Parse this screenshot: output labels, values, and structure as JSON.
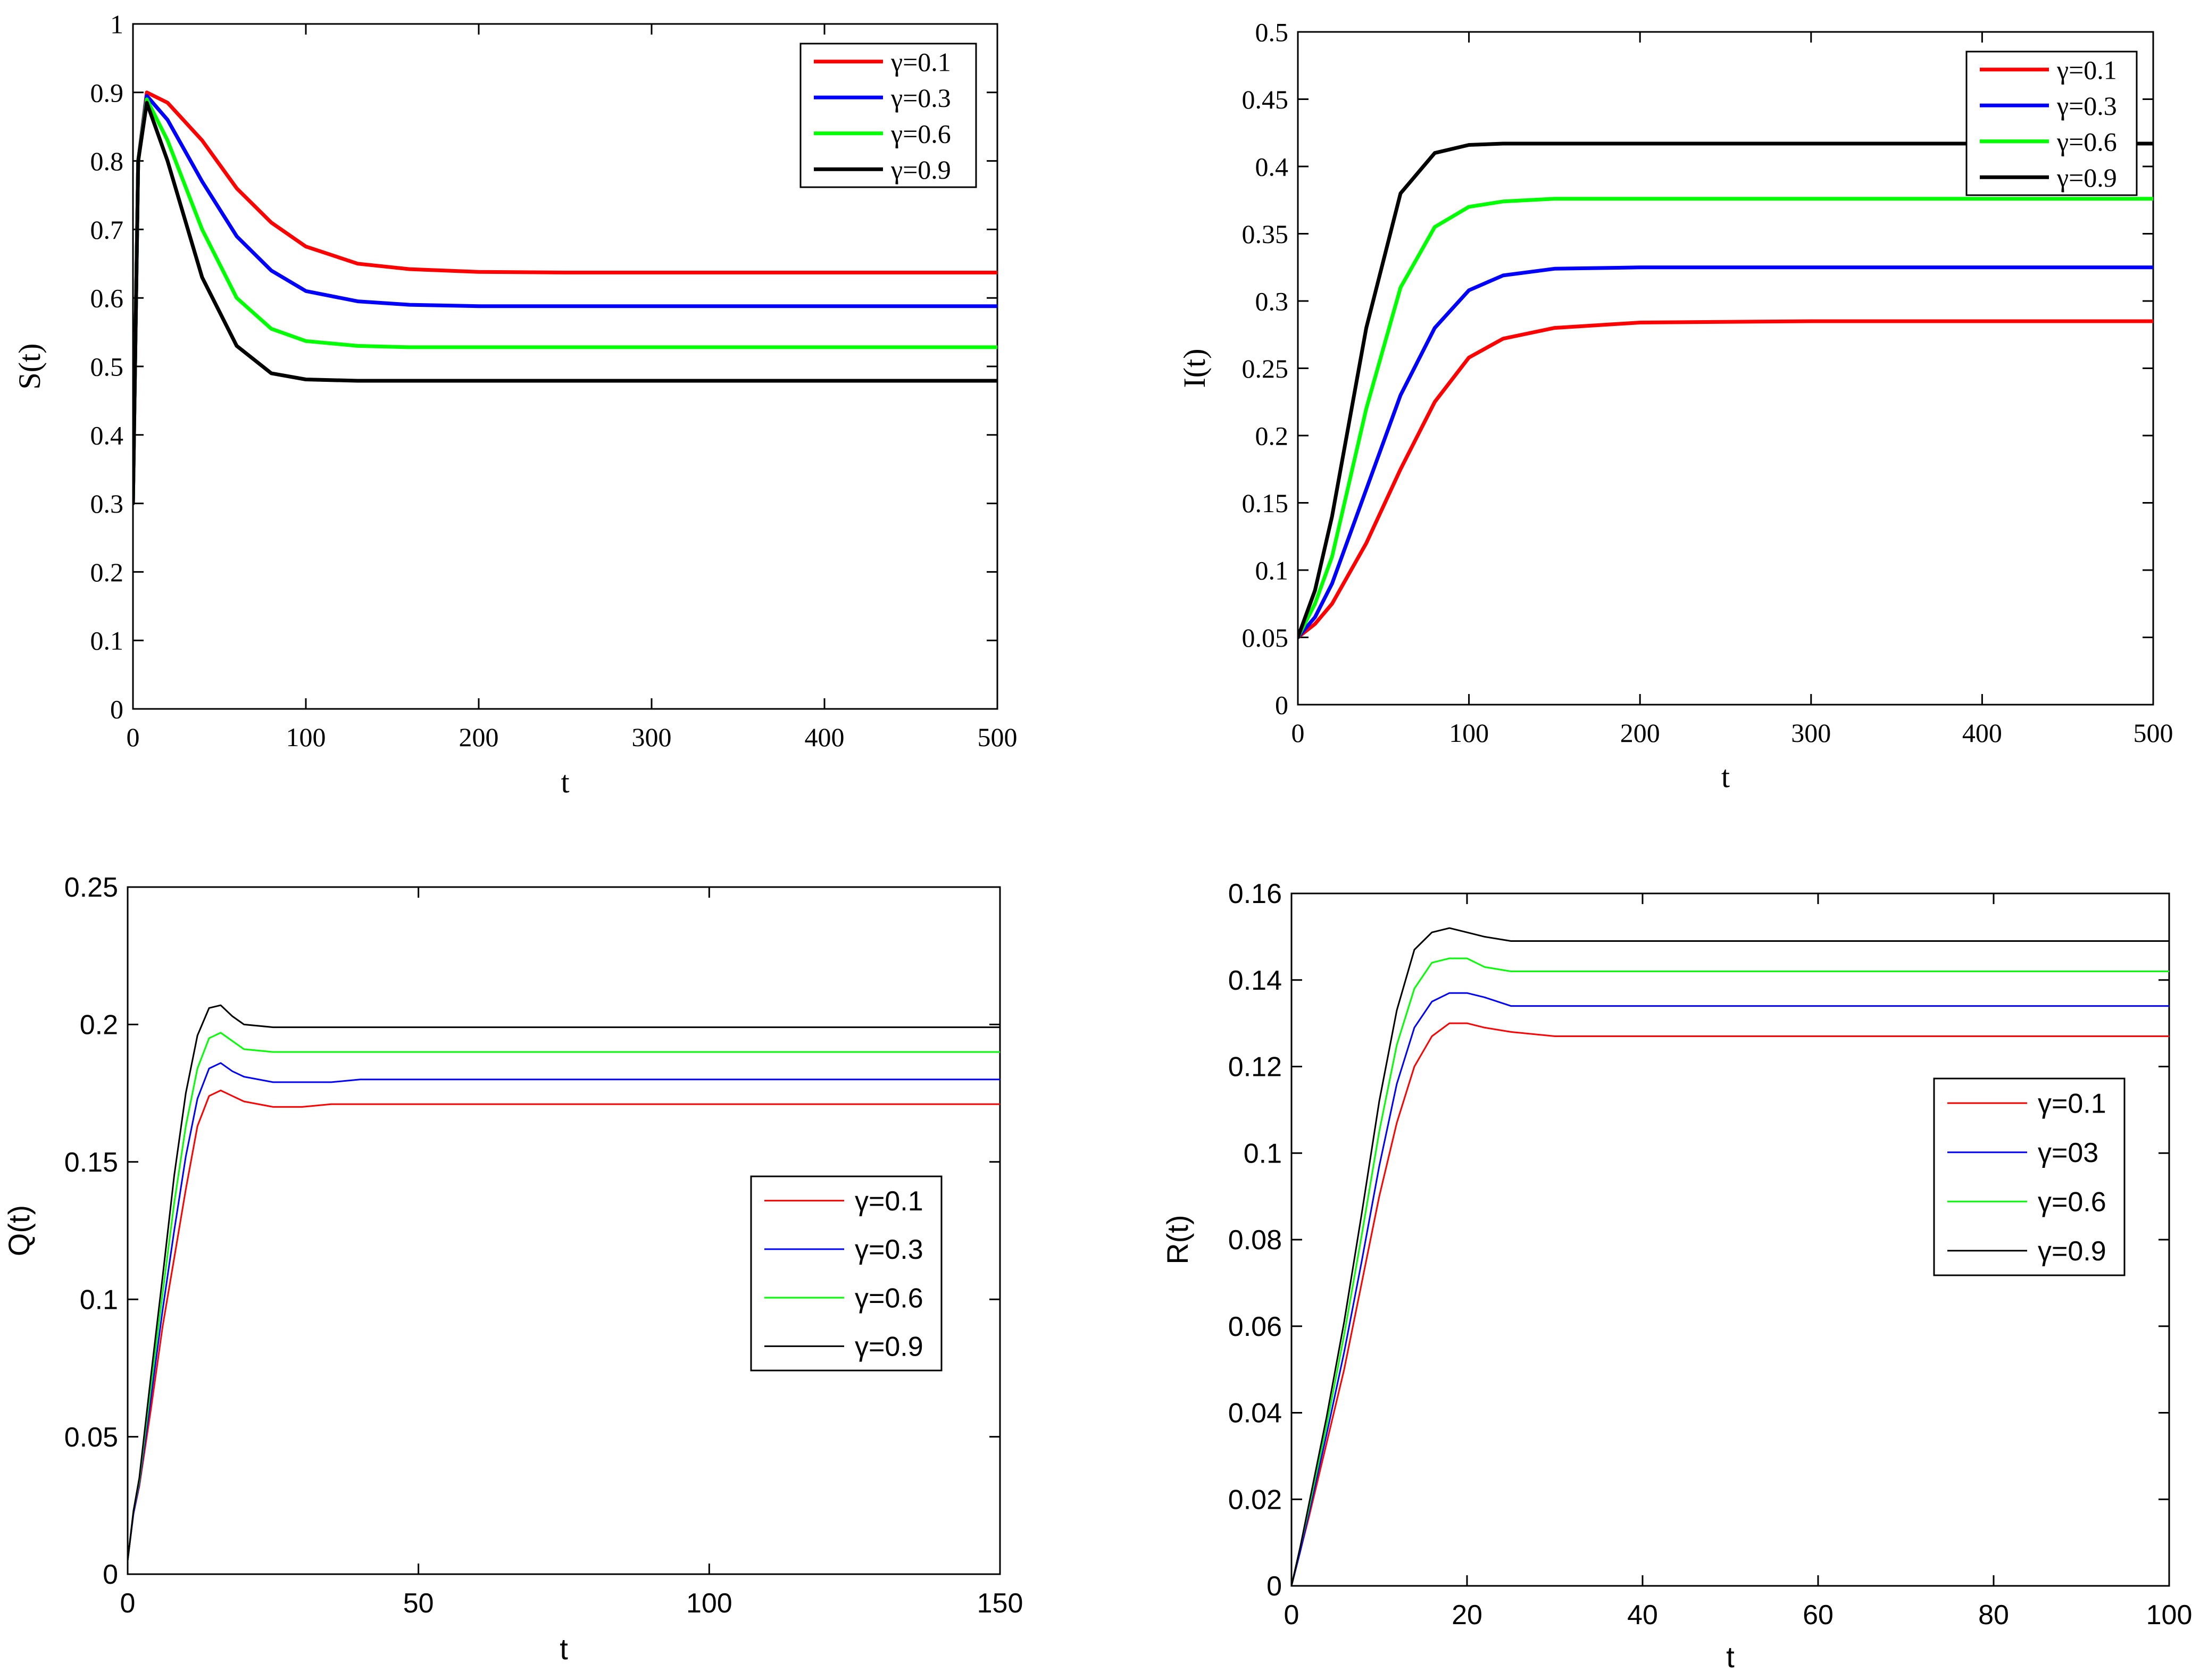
{
  "chart_data": [
    {
      "id": "S",
      "type": "line",
      "font": "serif",
      "ylabel": "S(t)",
      "xlabel": "t",
      "xlim": [
        0,
        500
      ],
      "ylim": [
        0,
        1
      ],
      "xticks": [
        0,
        100,
        200,
        300,
        400,
        500
      ],
      "xtick_labels": [
        "0",
        "100",
        "200",
        "300",
        "400",
        "500"
      ],
      "yticks": [
        0,
        0.1,
        0.2,
        0.3,
        0.4,
        0.5,
        0.6,
        0.7,
        0.8,
        0.9,
        1
      ],
      "ytick_labels": [
        "0",
        "0.1",
        "0.2",
        "0.3",
        "0.4",
        "0.5",
        "0.6",
        "0.7",
        "0.8",
        "0.9",
        "1"
      ],
      "legend_position": "top-right",
      "series": [
        {
          "name": "γ=0.1",
          "color": "#ff0000",
          "x": [
            0,
            3,
            8,
            20,
            40,
            60,
            80,
            100,
            130,
            160,
            200,
            250,
            300,
            400,
            500
          ],
          "y": [
            0.3,
            0.8,
            0.9,
            0.885,
            0.83,
            0.76,
            0.71,
            0.675,
            0.65,
            0.642,
            0.638,
            0.637,
            0.637,
            0.637,
            0.637
          ]
        },
        {
          "name": "γ=0.3",
          "color": "#0000ff",
          "x": [
            0,
            3,
            8,
            20,
            40,
            60,
            80,
            100,
            130,
            160,
            200,
            250,
            300,
            400,
            500
          ],
          "y": [
            0.3,
            0.8,
            0.895,
            0.86,
            0.77,
            0.69,
            0.64,
            0.61,
            0.595,
            0.59,
            0.588,
            0.588,
            0.588,
            0.588,
            0.588
          ]
        },
        {
          "name": "γ=0.6",
          "color": "#00ff00",
          "x": [
            0,
            3,
            8,
            20,
            40,
            60,
            80,
            100,
            130,
            160,
            200,
            250,
            300,
            400,
            500
          ],
          "y": [
            0.3,
            0.8,
            0.89,
            0.83,
            0.7,
            0.6,
            0.555,
            0.537,
            0.53,
            0.528,
            0.528,
            0.528,
            0.528,
            0.528,
            0.528
          ]
        },
        {
          "name": "γ=0.9",
          "color": "#000000",
          "x": [
            0,
            3,
            8,
            20,
            40,
            60,
            80,
            100,
            130,
            160,
            200,
            250,
            300,
            400,
            500
          ],
          "y": [
            0.3,
            0.8,
            0.885,
            0.8,
            0.63,
            0.53,
            0.49,
            0.481,
            0.479,
            0.479,
            0.479,
            0.479,
            0.479,
            0.479,
            0.479
          ]
        }
      ]
    },
    {
      "id": "I",
      "type": "line",
      "font": "serif",
      "ylabel": "I(t)",
      "xlabel": "t",
      "xlim": [
        0,
        500
      ],
      "ylim": [
        0,
        0.5
      ],
      "xticks": [
        0,
        100,
        200,
        300,
        400,
        500
      ],
      "xtick_labels": [
        "0",
        "100",
        "200",
        "300",
        "400",
        "500"
      ],
      "yticks": [
        0,
        0.05,
        0.1,
        0.15,
        0.2,
        0.25,
        0.3,
        0.35,
        0.4,
        0.45,
        0.5
      ],
      "ytick_labels": [
        "0",
        "0.05",
        "0.1",
        "0.15",
        "0.2",
        "0.25",
        "0.3",
        "0.35",
        "0.4",
        "0.45",
        "0.5"
      ],
      "legend_position": "top-right",
      "series": [
        {
          "name": "γ=0.1",
          "color": "#ff0000",
          "x": [
            0,
            10,
            20,
            40,
            60,
            80,
            100,
            120,
            150,
            200,
            300,
            400,
            500
          ],
          "y": [
            0.05,
            0.06,
            0.075,
            0.12,
            0.175,
            0.225,
            0.258,
            0.272,
            0.28,
            0.284,
            0.285,
            0.285,
            0.285
          ]
        },
        {
          "name": "γ=0.3",
          "color": "#0000ff",
          "x": [
            0,
            10,
            20,
            40,
            60,
            80,
            100,
            120,
            150,
            200,
            300,
            400,
            500
          ],
          "y": [
            0.05,
            0.065,
            0.09,
            0.16,
            0.23,
            0.28,
            0.308,
            0.319,
            0.324,
            0.325,
            0.325,
            0.325,
            0.325
          ]
        },
        {
          "name": "γ=0.6",
          "color": "#00ff00",
          "x": [
            0,
            10,
            20,
            40,
            60,
            80,
            100,
            120,
            150,
            200,
            300,
            400,
            500
          ],
          "y": [
            0.05,
            0.075,
            0.11,
            0.22,
            0.31,
            0.355,
            0.37,
            0.374,
            0.376,
            0.376,
            0.376,
            0.376,
            0.376
          ]
        },
        {
          "name": "γ=0.9",
          "color": "#000000",
          "x": [
            0,
            10,
            20,
            40,
            60,
            80,
            100,
            120,
            150,
            200,
            300,
            400,
            500
          ],
          "y": [
            0.05,
            0.085,
            0.14,
            0.28,
            0.38,
            0.41,
            0.416,
            0.417,
            0.417,
            0.417,
            0.417,
            0.417,
            0.417
          ]
        }
      ]
    },
    {
      "id": "Q",
      "type": "line",
      "font": "sans",
      "ylabel": "Q(t)",
      "xlabel": "t",
      "xlim": [
        0,
        150
      ],
      "ylim": [
        0,
        0.25
      ],
      "xticks": [
        0,
        50,
        100,
        150
      ],
      "xtick_labels": [
        "0",
        "50",
        "100",
        "150"
      ],
      "yticks": [
        0,
        0.05,
        0.1,
        0.15,
        0.2,
        0.25
      ],
      "ytick_labels": [
        "0",
        "0.05",
        "0.1",
        "0.15",
        "0.2",
        "0.25"
      ],
      "legend_position": "center-right",
      "series": [
        {
          "name": "γ=0.1",
          "color": "#ff0000",
          "x": [
            0,
            1,
            2,
            4,
            6,
            8,
            10,
            12,
            14,
            16,
            18,
            20,
            25,
            30,
            35,
            40,
            60,
            80,
            100,
            150
          ],
          "y": [
            0.005,
            0.022,
            0.032,
            0.06,
            0.09,
            0.115,
            0.14,
            0.163,
            0.174,
            0.176,
            0.174,
            0.172,
            0.17,
            0.17,
            0.171,
            0.171,
            0.171,
            0.171,
            0.171,
            0.171
          ]
        },
        {
          "name": "γ=0.3",
          "color": "#0000ff",
          "x": [
            0,
            1,
            2,
            4,
            6,
            8,
            10,
            12,
            14,
            16,
            18,
            20,
            25,
            30,
            35,
            40,
            60,
            80,
            100,
            150
          ],
          "y": [
            0.005,
            0.022,
            0.033,
            0.064,
            0.096,
            0.125,
            0.152,
            0.173,
            0.184,
            0.186,
            0.183,
            0.181,
            0.179,
            0.179,
            0.179,
            0.18,
            0.18,
            0.18,
            0.18,
            0.18
          ]
        },
        {
          "name": "γ=0.6",
          "color": "#00ff00",
          "x": [
            0,
            1,
            2,
            4,
            6,
            8,
            10,
            12,
            14,
            16,
            18,
            20,
            25,
            30,
            35,
            40,
            60,
            80,
            100,
            150
          ],
          "y": [
            0.005,
            0.023,
            0.034,
            0.068,
            0.102,
            0.135,
            0.163,
            0.184,
            0.195,
            0.197,
            0.194,
            0.191,
            0.19,
            0.19,
            0.19,
            0.19,
            0.19,
            0.19,
            0.19,
            0.19
          ]
        },
        {
          "name": "γ=0.9",
          "color": "#000000",
          "x": [
            0,
            1,
            2,
            4,
            6,
            8,
            10,
            12,
            14,
            16,
            18,
            20,
            25,
            30,
            35,
            40,
            60,
            80,
            100,
            150
          ],
          "y": [
            0.005,
            0.023,
            0.035,
            0.072,
            0.108,
            0.145,
            0.175,
            0.196,
            0.206,
            0.207,
            0.203,
            0.2,
            0.199,
            0.199,
            0.199,
            0.199,
            0.199,
            0.199,
            0.199,
            0.199
          ]
        }
      ]
    },
    {
      "id": "R",
      "type": "line",
      "font": "sans",
      "ylabel": "R(t)",
      "xlabel": "t",
      "xlim": [
        0,
        100
      ],
      "ylim": [
        0,
        0.16
      ],
      "xticks": [
        0,
        20,
        40,
        60,
        80,
        100
      ],
      "xtick_labels": [
        "0",
        "20",
        "40",
        "60",
        "80",
        "100"
      ],
      "yticks": [
        0,
        0.02,
        0.04,
        0.06,
        0.08,
        0.1,
        0.12,
        0.14,
        0.16
      ],
      "ytick_labels": [
        "0",
        "0.02",
        "0.04",
        "0.06",
        "0.08",
        "0.1",
        "0.12",
        "0.14",
        "0.16"
      ],
      "legend_position": "center-right",
      "series": [
        {
          "name": "γ=0.1",
          "color": "#ff0000",
          "x": [
            0,
            1,
            2,
            4,
            6,
            8,
            10,
            12,
            14,
            16,
            18,
            20,
            22,
            25,
            30,
            40,
            60,
            80,
            100
          ],
          "y": [
            0,
            0.008,
            0.016,
            0.033,
            0.05,
            0.07,
            0.09,
            0.107,
            0.12,
            0.127,
            0.13,
            0.13,
            0.129,
            0.128,
            0.127,
            0.127,
            0.127,
            0.127,
            0.127
          ]
        },
        {
          "name": "γ=03",
          "color": "#0000ff",
          "x": [
            0,
            1,
            2,
            4,
            6,
            8,
            10,
            12,
            14,
            16,
            18,
            20,
            22,
            25,
            30,
            40,
            60,
            80,
            100
          ],
          "y": [
            0,
            0.008,
            0.017,
            0.035,
            0.054,
            0.075,
            0.097,
            0.116,
            0.129,
            0.135,
            0.137,
            0.137,
            0.136,
            0.134,
            0.134,
            0.134,
            0.134,
            0.134,
            0.134
          ]
        },
        {
          "name": "γ=0.6",
          "color": "#00ff00",
          "x": [
            0,
            1,
            2,
            4,
            6,
            8,
            10,
            12,
            14,
            16,
            18,
            20,
            22,
            25,
            30,
            40,
            60,
            80,
            100
          ],
          "y": [
            0,
            0.009,
            0.018,
            0.037,
            0.058,
            0.081,
            0.105,
            0.125,
            0.138,
            0.144,
            0.145,
            0.145,
            0.143,
            0.142,
            0.142,
            0.142,
            0.142,
            0.142,
            0.142
          ]
        },
        {
          "name": "γ=0.9",
          "color": "#000000",
          "x": [
            0,
            1,
            2,
            4,
            6,
            8,
            10,
            12,
            14,
            16,
            18,
            20,
            22,
            25,
            30,
            40,
            60,
            80,
            100
          ],
          "y": [
            0,
            0.009,
            0.019,
            0.039,
            0.061,
            0.086,
            0.112,
            0.133,
            0.147,
            0.151,
            0.152,
            0.151,
            0.15,
            0.149,
            0.149,
            0.149,
            0.149,
            0.149,
            0.149
          ]
        }
      ]
    }
  ]
}
